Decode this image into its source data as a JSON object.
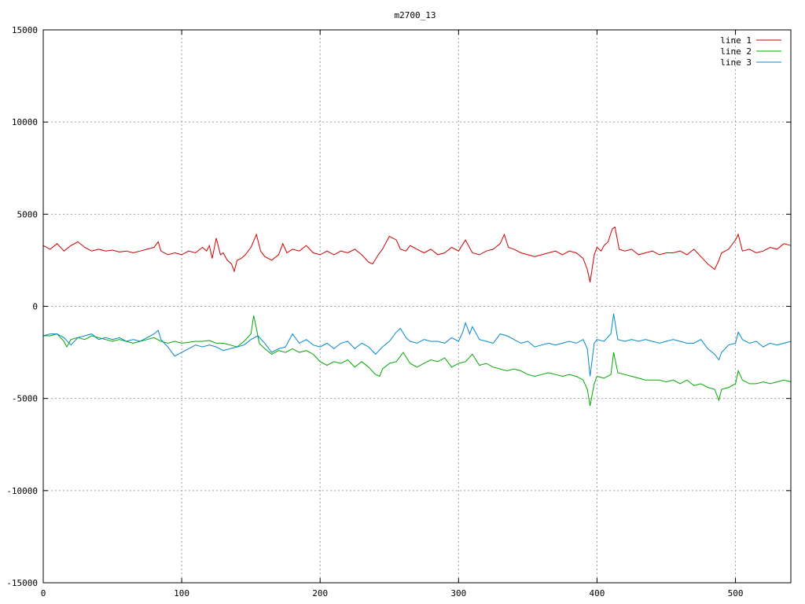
{
  "chart_data": {
    "type": "line",
    "title": "m2700_13",
    "xlabel": "",
    "ylabel": "",
    "xlim": [
      0,
      540
    ],
    "ylim": [
      -15000,
      15000
    ],
    "xticks": [
      0,
      100,
      200,
      300,
      400,
      500
    ],
    "yticks": [
      -15000,
      -10000,
      -5000,
      0,
      5000,
      10000,
      15000
    ],
    "grid": true,
    "legend_position": "top-right",
    "series": [
      {
        "name": "line 1",
        "color": "#cc0000",
        "x": [
          0,
          5,
          10,
          15,
          20,
          25,
          30,
          35,
          40,
          45,
          50,
          55,
          60,
          65,
          70,
          75,
          80,
          83,
          85,
          90,
          95,
          100,
          105,
          110,
          115,
          118,
          120,
          122,
          125,
          128,
          130,
          133,
          136,
          138,
          140,
          143,
          146,
          150,
          154,
          157,
          160,
          165,
          170,
          173,
          176,
          180,
          185,
          190,
          195,
          200,
          205,
          210,
          215,
          220,
          225,
          230,
          235,
          238,
          242,
          245,
          250,
          255,
          258,
          262,
          265,
          270,
          275,
          280,
          285,
          290,
          295,
          300,
          305,
          310,
          315,
          320,
          325,
          330,
          333,
          336,
          340,
          345,
          350,
          355,
          360,
          365,
          370,
          375,
          380,
          385,
          390,
          393,
          395,
          398,
          400,
          403,
          405,
          408,
          411,
          413,
          416,
          420,
          425,
          430,
          435,
          440,
          445,
          450,
          455,
          460,
          465,
          470,
          475,
          480,
          485,
          488,
          490,
          495,
          500,
          502,
          505,
          510,
          515,
          520,
          525,
          530,
          535,
          540
        ],
        "y": [
          3300,
          3100,
          3400,
          3000,
          3300,
          3500,
          3200,
          3000,
          3100,
          3000,
          3050,
          2950,
          3000,
          2900,
          3000,
          3100,
          3200,
          3500,
          3000,
          2800,
          2900,
          2800,
          3000,
          2900,
          3200,
          3000,
          3300,
          2600,
          3700,
          2800,
          2900,
          2500,
          2300,
          1900,
          2500,
          2600,
          2800,
          3200,
          3900,
          3000,
          2700,
          2500,
          2800,
          3400,
          2900,
          3100,
          3000,
          3300,
          2900,
          2800,
          3000,
          2800,
          3000,
          2900,
          3100,
          2800,
          2400,
          2300,
          2800,
          3100,
          3800,
          3600,
          3100,
          3000,
          3300,
          3100,
          2900,
          3100,
          2800,
          2900,
          3200,
          3000,
          3600,
          2900,
          2800,
          3000,
          3100,
          3400,
          3900,
          3200,
          3100,
          2900,
          2800,
          2700,
          2800,
          2900,
          3000,
          2800,
          3000,
          2900,
          2600,
          2000,
          1300,
          2800,
          3200,
          3000,
          3300,
          3500,
          4200,
          4300,
          3100,
          3000,
          3100,
          2800,
          2900,
          3000,
          2800,
          2900,
          2900,
          3000,
          2800,
          3100,
          2700,
          2300,
          2000,
          2500,
          2900,
          3100,
          3600,
          3900,
          3000,
          3100,
          2900,
          3000,
          3200,
          3100,
          3400,
          3300
        ]
      },
      {
        "name": "line 2",
        "color": "#00aa00",
        "x": [
          0,
          5,
          10,
          15,
          17,
          20,
          25,
          30,
          35,
          40,
          45,
          50,
          55,
          60,
          65,
          70,
          75,
          80,
          85,
          90,
          95,
          100,
          105,
          110,
          115,
          120,
          125,
          130,
          135,
          140,
          145,
          150,
          152,
          154,
          156,
          160,
          165,
          170,
          175,
          180,
          185,
          190,
          195,
          200,
          205,
          210,
          215,
          220,
          225,
          230,
          235,
          240,
          243,
          245,
          250,
          255,
          260,
          265,
          270,
          275,
          280,
          285,
          290,
          295,
          300,
          305,
          310,
          315,
          320,
          325,
          330,
          335,
          340,
          345,
          350,
          355,
          360,
          365,
          370,
          375,
          380,
          385,
          390,
          393,
          395,
          398,
          400,
          405,
          410,
          412,
          415,
          420,
          425,
          430,
          435,
          440,
          445,
          450,
          455,
          460,
          465,
          470,
          475,
          480,
          485,
          488,
          490,
          495,
          500,
          502,
          505,
          510,
          515,
          520,
          525,
          530,
          535,
          540
        ],
        "y": [
          -1600,
          -1600,
          -1500,
          -1900,
          -2200,
          -1800,
          -1700,
          -1800,
          -1600,
          -1700,
          -1800,
          -1900,
          -1800,
          -1900,
          -2000,
          -1900,
          -1800,
          -1700,
          -1900,
          -2000,
          -1900,
          -2000,
          -1950,
          -1900,
          -1900,
          -1850,
          -2000,
          -2000,
          -2100,
          -2200,
          -1900,
          -1500,
          -500,
          -1200,
          -2000,
          -2300,
          -2600,
          -2400,
          -2500,
          -2300,
          -2500,
          -2400,
          -2600,
          -3000,
          -3200,
          -3000,
          -3100,
          -2900,
          -3300,
          -3000,
          -3300,
          -3700,
          -3800,
          -3400,
          -3100,
          -3000,
          -2500,
          -3100,
          -3300,
          -3100,
          -2900,
          -3000,
          -2800,
          -3300,
          -3100,
          -3000,
          -2600,
          -3200,
          -3100,
          -3300,
          -3400,
          -3500,
          -3400,
          -3500,
          -3700,
          -3800,
          -3700,
          -3600,
          -3700,
          -3800,
          -3700,
          -3800,
          -4000,
          -4500,
          -5400,
          -4200,
          -3800,
          -3900,
          -3700,
          -2500,
          -3600,
          -3700,
          -3800,
          -3900,
          -4000,
          -4000,
          -4000,
          -4100,
          -4000,
          -4200,
          -4000,
          -4300,
          -4200,
          -4400,
          -4500,
          -5100,
          -4500,
          -4400,
          -4200,
          -3500,
          -4000,
          -4200,
          -4200,
          -4100,
          -4200,
          -4100,
          -4000,
          -4100
        ]
      },
      {
        "name": "line 3",
        "color": "#0088cc",
        "x": [
          0,
          5,
          10,
          15,
          20,
          25,
          30,
          35,
          40,
          45,
          50,
          55,
          60,
          65,
          70,
          75,
          80,
          83,
          85,
          90,
          95,
          100,
          105,
          110,
          115,
          120,
          125,
          130,
          135,
          140,
          145,
          150,
          155,
          160,
          165,
          170,
          175,
          180,
          185,
          190,
          195,
          200,
          205,
          210,
          215,
          220,
          225,
          230,
          235,
          240,
          245,
          250,
          255,
          258,
          262,
          265,
          270,
          275,
          280,
          285,
          290,
          295,
          300,
          303,
          305,
          308,
          310,
          315,
          320,
          325,
          330,
          335,
          340,
          345,
          350,
          355,
          360,
          365,
          370,
          375,
          380,
          385,
          390,
          393,
          395,
          398,
          400,
          405,
          410,
          412,
          415,
          420,
          425,
          430,
          435,
          440,
          445,
          450,
          455,
          460,
          465,
          470,
          475,
          480,
          485,
          488,
          490,
          495,
          500,
          502,
          505,
          510,
          515,
          520,
          525,
          530,
          535,
          540
        ],
        "y": [
          -1600,
          -1500,
          -1500,
          -1700,
          -2100,
          -1700,
          -1600,
          -1500,
          -1800,
          -1700,
          -1800,
          -1700,
          -1900,
          -1800,
          -1900,
          -1700,
          -1500,
          -1300,
          -1800,
          -2200,
          -2700,
          -2500,
          -2300,
          -2100,
          -2200,
          -2100,
          -2200,
          -2400,
          -2300,
          -2200,
          -2100,
          -1800,
          -1600,
          -2000,
          -2500,
          -2300,
          -2200,
          -1500,
          -2000,
          -1800,
          -2100,
          -2200,
          -2000,
          -2300,
          -2000,
          -1900,
          -2300,
          -2000,
          -2200,
          -2600,
          -2200,
          -1900,
          -1400,
          -1200,
          -1700,
          -1900,
          -2000,
          -1800,
          -1900,
          -1900,
          -2000,
          -1700,
          -1900,
          -1400,
          -900,
          -1500,
          -1100,
          -1800,
          -1900,
          -2000,
          -1500,
          -1600,
          -1800,
          -2000,
          -1900,
          -2200,
          -2100,
          -2000,
          -2100,
          -2000,
          -1900,
          -2000,
          -1800,
          -2300,
          -3800,
          -2000,
          -1800,
          -1900,
          -1500,
          -400,
          -1800,
          -1900,
          -1800,
          -1900,
          -1800,
          -1900,
          -2000,
          -1900,
          -1800,
          -1900,
          -2000,
          -2000,
          -1800,
          -2300,
          -2600,
          -2900,
          -2500,
          -2100,
          -2000,
          -1400,
          -1800,
          -2000,
          -1900,
          -2200,
          -2000,
          -2100,
          -2000,
          -1900
        ]
      }
    ]
  }
}
